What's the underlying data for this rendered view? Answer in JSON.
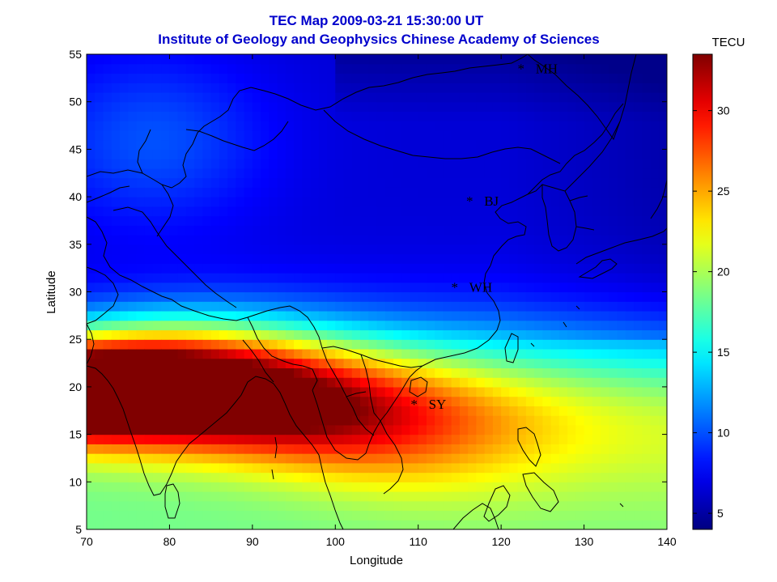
{
  "chart_data": {
    "type": "heatmap",
    "title": "TEC Map 2009-03-21 15:30:00 UT",
    "subtitle": "Institute of Geology and Geophysics Chinese Academy of Sciences",
    "xlabel": "Longitude",
    "ylabel": "Latitude",
    "xlim": [
      70,
      140
    ],
    "ylim": [
      5,
      55
    ],
    "xticks": [
      "70",
      "80",
      "90",
      "100",
      "110",
      "120",
      "130",
      "140"
    ],
    "yticks": [
      "5",
      "10",
      "15",
      "20",
      "25",
      "30",
      "35",
      "40",
      "45",
      "50",
      "55"
    ],
    "colorbar": {
      "label": "TECU",
      "range": [
        4,
        33.5
      ],
      "ticks": [
        "5",
        "10",
        "15",
        "20",
        "25",
        "30"
      ],
      "colormap": "jet"
    },
    "stations": [
      {
        "name": "MH",
        "lon": 122.4,
        "lat": 53.5
      },
      {
        "name": "BJ",
        "lon": 116.2,
        "lat": 39.6
      },
      {
        "name": "WH",
        "lon": 114.4,
        "lat": 30.5
      },
      {
        "name": "SY",
        "lon": 109.5,
        "lat": 18.2
      }
    ],
    "field_description": "TEC peaks (~33 TECU) near lon 70-75, lat 20; equatorial anomaly crest band along ~20N decreasing eastward; values ~5-8 TECU north of 35N"
  },
  "colors": {
    "title": "#0000cc",
    "axis": "#000000",
    "coastline": "#000000"
  }
}
